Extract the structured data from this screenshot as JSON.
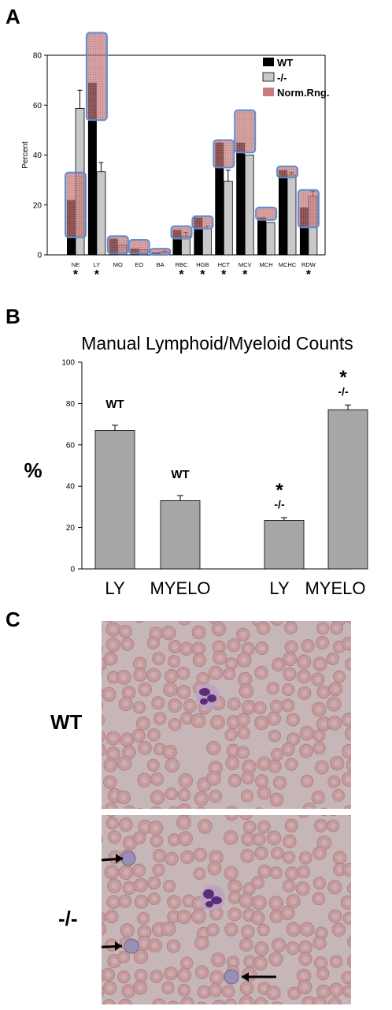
{
  "panels": {
    "a": "A",
    "b": "B",
    "c": "C"
  },
  "colors": {
    "wt": "#000000",
    "ko": "#c8c8c8",
    "norm_fill": "#c77d7d",
    "norm_border": "#5b8ed6",
    "bar_b": "#a6a6a6",
    "blood_bg": "#c7b6b8",
    "rbc": "#c49a9c",
    "nucleus": "#5b2d78"
  },
  "chart_data": [
    {
      "type": "bar",
      "panel": "A",
      "ylabel": "Percent",
      "ylim": [
        0,
        80
      ],
      "yticks": [
        0,
        20,
        40,
        60,
        80
      ],
      "categories": [
        "NE",
        "LY",
        "MO",
        "EO",
        "BA",
        "RBC",
        "HGB",
        "HCT",
        "MCV",
        "MCH",
        "MCHC",
        "RDW"
      ],
      "significance": [
        "*",
        "*",
        "",
        "",
        "",
        "*",
        "*",
        "*",
        "*",
        "",
        "",
        "*"
      ],
      "series": [
        {
          "name": "WT",
          "values": [
            22,
            69,
            6.5,
            2.5,
            1,
            10,
            15,
            45,
            45,
            15,
            34,
            19
          ],
          "errors": [
            0,
            0,
            0,
            0,
            0,
            0,
            0,
            1,
            0,
            0,
            0,
            0
          ]
        },
        {
          "name": "-/-",
          "values": [
            58.7,
            33.3,
            4,
            2,
            1,
            7.5,
            10.5,
            29.5,
            40,
            13,
            32,
            23.5
          ],
          "errors": [
            7.3,
            3.7,
            0,
            0,
            0.5,
            1.5,
            1,
            4.5,
            0,
            0,
            1,
            2
          ]
        },
        {
          "name": "Norm.Rng.",
          "ranges": [
            [
              7,
              33
            ],
            [
              54,
              89
            ],
            [
              0.5,
              7.5
            ],
            [
              0.5,
              6
            ],
            [
              0,
              2.5
            ],
            [
              6.5,
              11.5
            ],
            [
              10.5,
              15.5
            ],
            [
              35,
              46
            ],
            [
              41,
              58
            ],
            [
              14,
              19
            ],
            [
              31,
              35.5
            ],
            [
              11,
              26
            ]
          ]
        }
      ],
      "legend": "top-right"
    },
    {
      "type": "bar",
      "panel": "B",
      "title": "Manual Lymphoid/Myeloid Counts",
      "ylabel": "%",
      "ylim": [
        0,
        100
      ],
      "yticks": [
        0,
        20,
        40,
        60,
        80,
        100
      ],
      "categories": [
        "LY",
        "MYELO",
        "LY",
        "MYELO"
      ],
      "values": [
        67,
        33,
        23.5,
        77
      ],
      "errors": [
        2.5,
        2.5,
        1.3,
        2.3
      ],
      "bar_labels": [
        "WT",
        "WT",
        "-/-",
        "-/-"
      ],
      "significance": [
        "",
        "",
        "*",
        "*"
      ]
    }
  ],
  "micrographs": {
    "wt_label": "WT",
    "ko_label": "-/-"
  }
}
